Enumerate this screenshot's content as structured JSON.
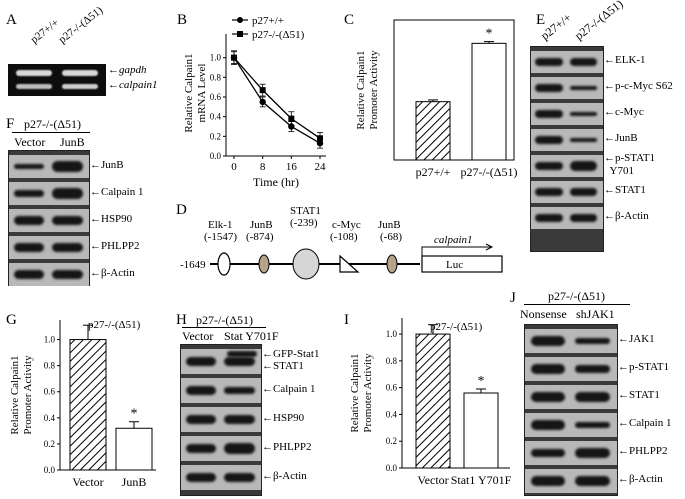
{
  "panels": {
    "A": {
      "label": "A",
      "cols": [
        "p27+/+",
        "p27-/-(Δ51)"
      ],
      "bands": [
        "gapdh",
        "calpain1"
      ]
    },
    "B": {
      "label": "B",
      "legend": [
        "p27+/+",
        "p27-/-(Δ51)"
      ],
      "ylabel": "Relative Calpain1 mRNA Level",
      "xlabel": "Time (hr)"
    },
    "C": {
      "label": "C",
      "ylabel": "Relative Calpain1 Promoter Activity",
      "star": "*"
    },
    "D": {
      "label": "D",
      "start": "-1649",
      "gene": "calpain1",
      "luc": "Luc",
      "sites": [
        {
          "name": "Elk-1",
          "pos": "(-1547)"
        },
        {
          "name": "JunB",
          "pos": "(-874)"
        },
        {
          "name": "STAT1",
          "pos": "(-239)"
        },
        {
          "name": "c-Myc",
          "pos": "(-108)"
        },
        {
          "name": "JunB",
          "pos": "(-68)"
        }
      ]
    },
    "E": {
      "label": "E",
      "cols": [
        "p27+/+",
        "p27-/-(Δ51)"
      ],
      "rows": [
        "ELK-1",
        "p-c-Myc S62",
        "c-Myc",
        "JunB",
        "p-STAT1",
        "Y701",
        "STAT1",
        "β-Actin"
      ]
    },
    "F": {
      "label": "F",
      "header": "p27-/-(Δ51)",
      "cols": [
        "Vector",
        "JunB"
      ],
      "rows": [
        "JunB",
        "Calpain 1",
        "HSP90",
        "PHLPP2",
        "β-Actin"
      ]
    },
    "G": {
      "label": "G",
      "inset": "p27-/-(Δ51)",
      "ylabel": "Relative Calpain1 Promoter Activity",
      "star": "*"
    },
    "H": {
      "label": "H",
      "header": "p27-/-(Δ51)",
      "cols": [
        "Vector",
        "Stat Y701F"
      ],
      "rows": [
        "GFP-Stat1",
        "STAT1",
        "Calpain 1",
        "HSP90",
        "PHLPP2",
        "β-Actin"
      ]
    },
    "I": {
      "label": "I",
      "inset": "p27-/-(Δ51)",
      "ylabel": "Relative Calpain1 Promoter Activity",
      "star": "*"
    },
    "J": {
      "label": "J",
      "header": "p27-/-(Δ51)",
      "cols": [
        "Nonsense",
        "shJAK1"
      ],
      "rows": [
        "JAK1",
        "p-STAT1",
        "STAT1",
        "Calpain 1",
        "PHLPP2",
        "β-Actin"
      ]
    }
  },
  "chart_data": [
    {
      "type": "line",
      "panel": "B",
      "x": [
        0,
        8,
        16,
        24
      ],
      "xlabel": "Time (hr)",
      "ylabel": "Relative Calpain1 mRNA Level",
      "ylim": [
        0,
        1.2
      ],
      "yticks": [
        0,
        0.2,
        0.4,
        0.6,
        0.8,
        1.0
      ],
      "series": [
        {
          "name": "p27+/+",
          "values": [
            1.0,
            0.55,
            0.3,
            0.13
          ]
        },
        {
          "name": "p27-/-(Δ51)",
          "values": [
            1.0,
            0.67,
            0.38,
            0.18
          ]
        }
      ]
    },
    {
      "type": "bar",
      "panel": "C",
      "categories": [
        "p27+/+",
        "p27-/-(Δ51)"
      ],
      "values": [
        1.0,
        2.0
      ],
      "ylabel": "Relative Calpain1 Promoter Activity",
      "ylim": [
        0,
        2.4
      ]
    },
    {
      "type": "bar",
      "panel": "G",
      "categories": [
        "Vector",
        "JunB"
      ],
      "values": [
        1.0,
        0.32
      ],
      "ylabel": "Relative Calpain1 Promoter Activity",
      "ylim": [
        0,
        1.15
      ],
      "yticks": [
        0,
        0.2,
        0.4,
        0.6,
        0.8,
        1.0
      ]
    },
    {
      "type": "bar",
      "panel": "I",
      "categories": [
        "Vector",
        "Stat1 Y701F"
      ],
      "values": [
        1.0,
        0.56
      ],
      "ylabel": "Relative Calpain1 Promoter Activity",
      "ylim": [
        0,
        1.12
      ],
      "yticks": [
        0,
        0.2,
        0.4,
        0.6,
        0.8,
        1.0
      ]
    }
  ]
}
